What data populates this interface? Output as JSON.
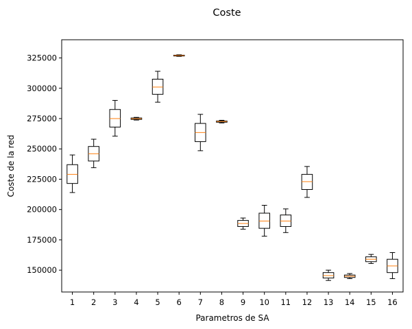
{
  "chart_data": {
    "type": "box",
    "title": "Coste",
    "xlabel": "Parametros de SA",
    "ylabel": "Coste de la red",
    "ylim": [
      132000,
      340000
    ],
    "xlim": [
      0.5,
      16.5
    ],
    "yticks": [
      150000,
      175000,
      200000,
      225000,
      250000,
      275000,
      300000,
      325000
    ],
    "categories": [
      "1",
      "2",
      "3",
      "4",
      "5",
      "6",
      "7",
      "8",
      "9",
      "10",
      "11",
      "12",
      "13",
      "14",
      "15",
      "16"
    ],
    "boxes": [
      {
        "whislo": 214000,
        "q1": 221500,
        "med": 229000,
        "q3": 237000,
        "whishi": 245000
      },
      {
        "whislo": 234500,
        "q1": 240000,
        "med": 246000,
        "q3": 252000,
        "whishi": 258000
      },
      {
        "whislo": 260500,
        "q1": 268000,
        "med": 275000,
        "q3": 282500,
        "whishi": 290000
      },
      {
        "whislo": 273800,
        "q1": 274300,
        "med": 274900,
        "q3": 275500,
        "whishi": 276000
      },
      {
        "whislo": 288500,
        "q1": 295000,
        "med": 301000,
        "q3": 307500,
        "whishi": 314000
      },
      {
        "whislo": 326300,
        "q1": 326600,
        "med": 327000,
        "q3": 327300,
        "whishi": 327600
      },
      {
        "whislo": 248500,
        "q1": 256000,
        "med": 263500,
        "q3": 271000,
        "whishi": 278500
      },
      {
        "whislo": 271400,
        "q1": 272000,
        "med": 272600,
        "q3": 273000,
        "whishi": 273600
      },
      {
        "whislo": 183800,
        "q1": 186000,
        "med": 188500,
        "q3": 191000,
        "whishi": 193000
      },
      {
        "whislo": 178000,
        "q1": 184500,
        "med": 190500,
        "q3": 197000,
        "whishi": 203500
      },
      {
        "whislo": 181000,
        "q1": 186000,
        "med": 190500,
        "q3": 195500,
        "whishi": 200500
      },
      {
        "whislo": 210000,
        "q1": 216500,
        "med": 223000,
        "q3": 229000,
        "whishi": 235500
      },
      {
        "whislo": 141500,
        "q1": 143500,
        "med": 145500,
        "q3": 148000,
        "whishi": 150000
      },
      {
        "whislo": 143000,
        "q1": 144000,
        "med": 145000,
        "q3": 146000,
        "whishi": 147200
      },
      {
        "whislo": 155500,
        "q1": 157000,
        "med": 159000,
        "q3": 161000,
        "whishi": 163000
      },
      {
        "whislo": 143000,
        "q1": 148000,
        "med": 153500,
        "q3": 159000,
        "whishi": 164500
      }
    ],
    "colors": {
      "box": "#000000",
      "median": "#ff7f0e"
    },
    "grid": false,
    "legend": false
  }
}
